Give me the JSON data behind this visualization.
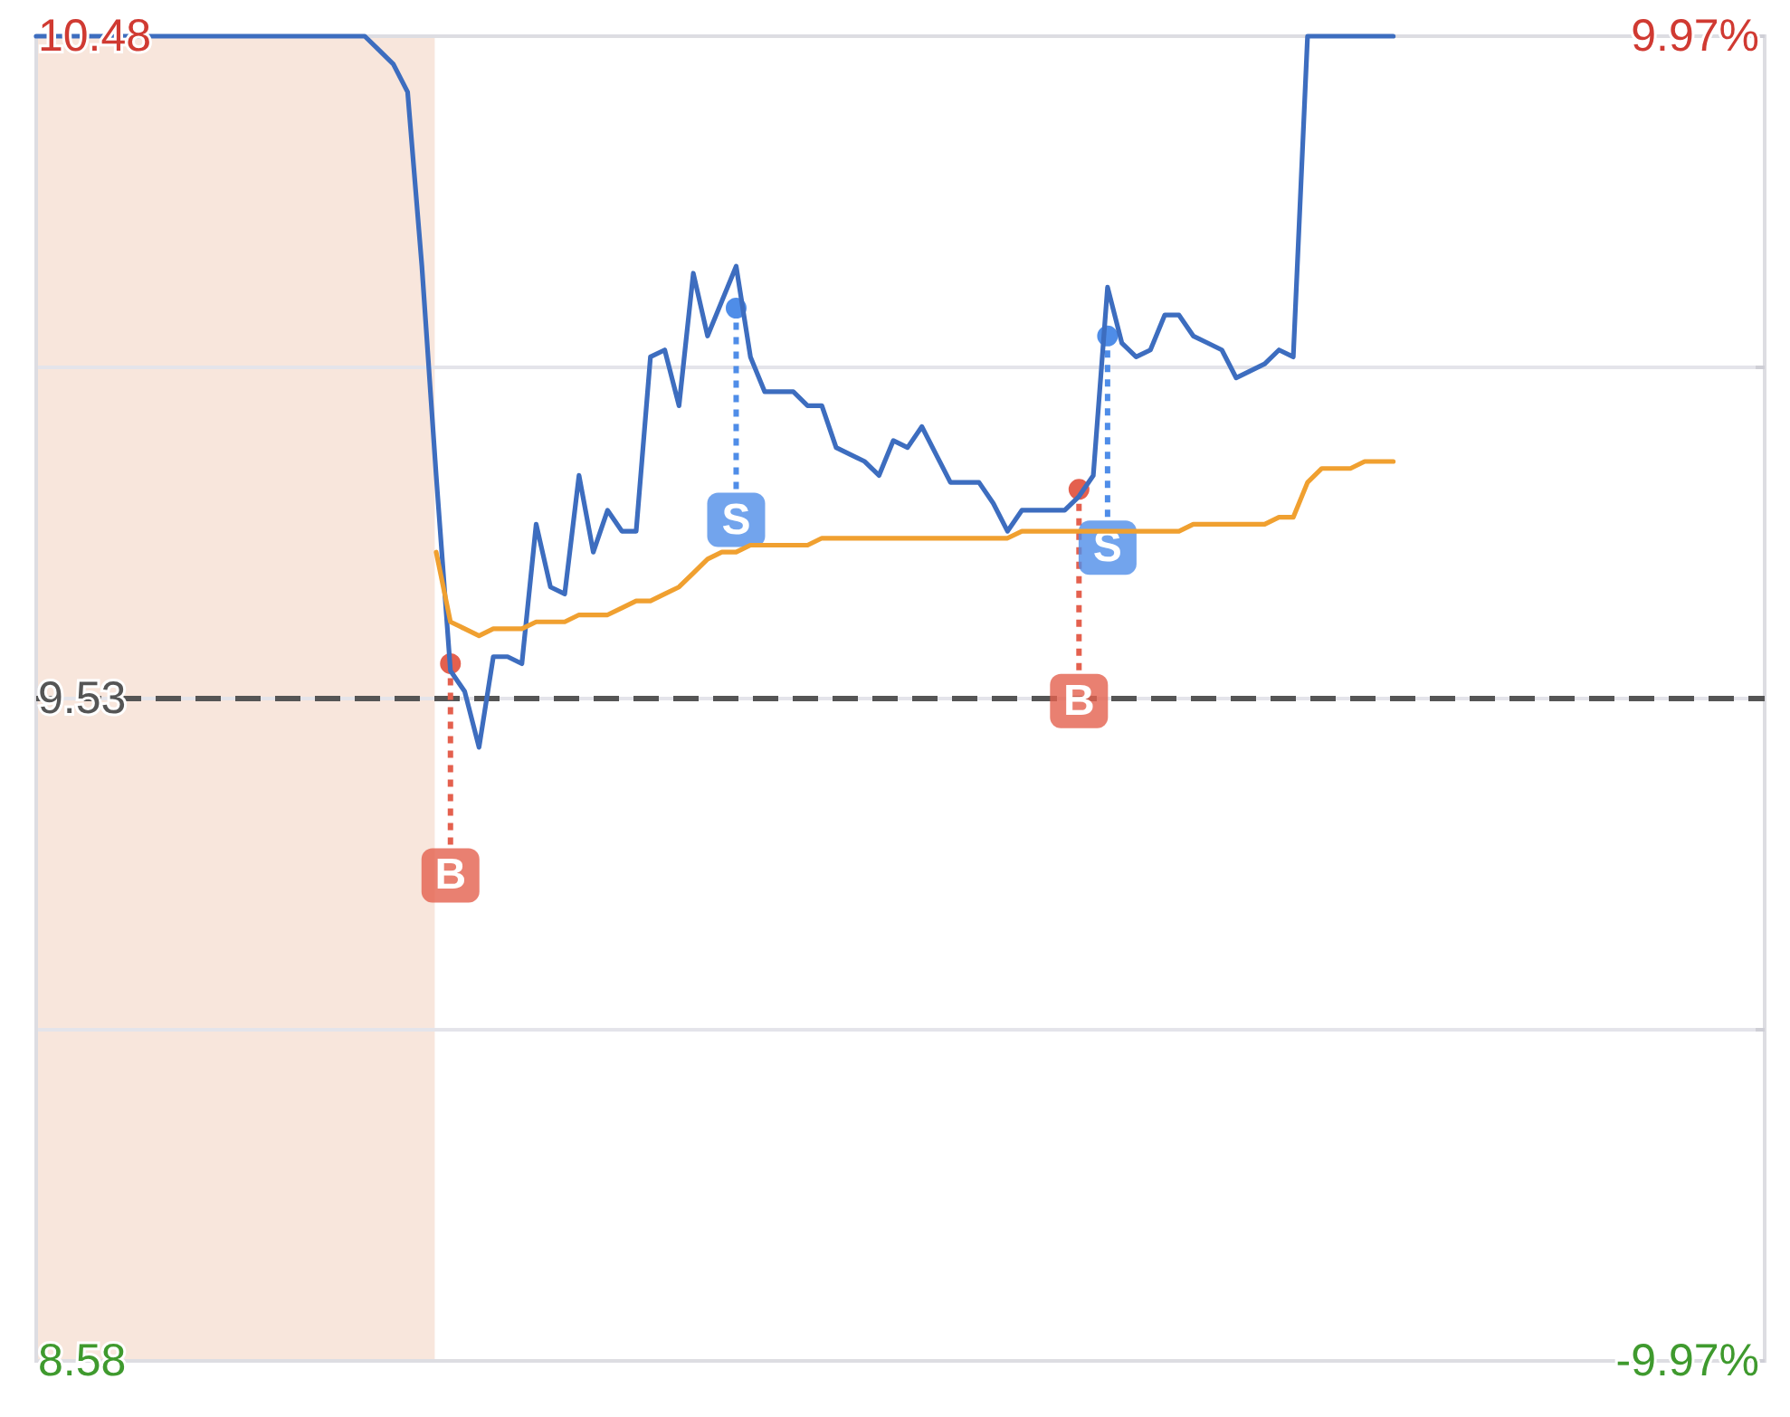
{
  "chart_data": {
    "type": "line",
    "categories": [
      null,
      null,
      null,
      null,
      null,
      null,
      null,
      null,
      null,
      null,
      null,
      null,
      null,
      null,
      null,
      null,
      null,
      null,
      null,
      null,
      null,
      null,
      null,
      null,
      null,
      null,
      null,
      null,
      null,
      null,
      null,
      null,
      null,
      null,
      null,
      null,
      null,
      null,
      null,
      null,
      null,
      null,
      null,
      null,
      null,
      null,
      null,
      null,
      null,
      null,
      null,
      null,
      null,
      null,
      null,
      null,
      null,
      null,
      null,
      null,
      null,
      null,
      null,
      null,
      null,
      null,
      null,
      null,
      null,
      null,
      null,
      null,
      null,
      null,
      null,
      null,
      null,
      null,
      null,
      null,
      null,
      null,
      null,
      null,
      null,
      null,
      null,
      null,
      null,
      null,
      null,
      null,
      null,
      null,
      null,
      null,
      null,
      null,
      null,
      null,
      null,
      null,
      null,
      null,
      null,
      null,
      null,
      null,
      null,
      null,
      null,
      null,
      null,
      null,
      null,
      null,
      null,
      null,
      null,
      null,
      null,
      null
    ],
    "ylim": [
      8.58,
      10.48
    ],
    "yticks": [
      10.48,
      {
        "value": 10.005,
        "label": null
      },
      9.53,
      {
        "value": 9.055,
        "label": null
      },
      8.58
    ],
    "y2lim": [
      -9.97,
      9.97
    ],
    "y2ticks": [
      {
        "value": 9.97,
        "label": "9.97%"
      },
      {
        "value": -9.97,
        "label": "-9.97%"
      }
    ],
    "tick_labels": "y",
    "grid": "y",
    "legend": false,
    "ref_lines": [
      {
        "axis": "y",
        "value": 9.53,
        "color": "#555555",
        "line_style": "dashed"
      }
    ],
    "series": [
      {
        "color": "#3d6dbf",
        "values": [
          10.48,
          10.48,
          10.48,
          10.48,
          10.48,
          10.48,
          10.48,
          10.48,
          10.48,
          10.48,
          10.48,
          10.48,
          10.48,
          10.48,
          10.48,
          10.48,
          10.48,
          10.48,
          10.48,
          10.48,
          10.48,
          10.48,
          10.48,
          10.48,
          10.46,
          10.44,
          10.4,
          10.15,
          9.85,
          9.57,
          9.54,
          9.46,
          9.59,
          9.59,
          9.58,
          9.78,
          9.69,
          9.68,
          9.85,
          9.74,
          9.8,
          9.77,
          9.77,
          10.02,
          10.03,
          9.95,
          10.14,
          10.05,
          10.1,
          10.15,
          10.02,
          9.97,
          9.97,
          9.97,
          9.95,
          9.95,
          9.89,
          9.88,
          9.87,
          9.85,
          9.9,
          9.89,
          9.92,
          9.88,
          9.84,
          9.84,
          9.84,
          9.81,
          9.77,
          9.8,
          9.8,
          9.8,
          9.8,
          9.82,
          9.85,
          10.12,
          10.04,
          10.02,
          10.03,
          10.08,
          10.08,
          10.05,
          10.04,
          10.03,
          9.99,
          10.0,
          10.01,
          10.03,
          10.02,
          10.48,
          10.48,
          10.48,
          10.48,
          10.48,
          10.48,
          10.48,
          null,
          null,
          null,
          null,
          null,
          null,
          null,
          null,
          null,
          null,
          null,
          null,
          null,
          null,
          null,
          null,
          null,
          null,
          null,
          null,
          null,
          null,
          null,
          null,
          null,
          null
        ]
      },
      {
        "color": "#f0a030",
        "values": [
          null,
          null,
          null,
          null,
          null,
          null,
          null,
          null,
          null,
          null,
          null,
          null,
          null,
          null,
          null,
          null,
          null,
          null,
          null,
          null,
          null,
          null,
          null,
          null,
          null,
          null,
          null,
          null,
          9.74,
          9.64,
          9.63,
          9.62,
          9.63,
          9.63,
          9.63,
          9.64,
          9.64,
          9.64,
          9.65,
          9.65,
          9.65,
          9.66,
          9.67,
          9.67,
          9.68,
          9.69,
          9.71,
          9.73,
          9.74,
          9.74,
          9.75,
          9.75,
          9.75,
          9.75,
          9.75,
          9.76,
          9.76,
          9.76,
          9.76,
          9.76,
          9.76,
          9.76,
          9.76,
          9.76,
          9.76,
          9.76,
          9.76,
          9.76,
          9.76,
          9.77,
          9.77,
          9.77,
          9.77,
          9.77,
          9.77,
          9.77,
          9.77,
          9.77,
          9.77,
          9.77,
          9.77,
          9.78,
          9.78,
          9.78,
          9.78,
          9.78,
          9.78,
          9.79,
          9.79,
          9.84,
          9.86,
          9.86,
          9.86,
          9.87,
          9.87,
          9.87,
          null,
          null,
          null,
          null,
          null,
          null,
          null,
          null,
          null,
          null,
          null,
          null,
          null,
          null,
          null,
          null,
          null,
          null,
          null,
          null,
          null,
          null,
          null,
          null,
          null,
          null
        ]
      },
      {
        "type": "scatter",
        "name": "B",
        "color": "#e4604e",
        "values": [
          null,
          null,
          null,
          null,
          null,
          null,
          null,
          null,
          null,
          null,
          null,
          null,
          null,
          null,
          null,
          null,
          null,
          null,
          null,
          null,
          null,
          null,
          null,
          null,
          null,
          null,
          null,
          null,
          null,
          9.58,
          null,
          null,
          null,
          null,
          null,
          null,
          null,
          null,
          null,
          null,
          null,
          null,
          null,
          null,
          null,
          null,
          null,
          null,
          null,
          null,
          null,
          null,
          null,
          null,
          null,
          null,
          null,
          null,
          null,
          null,
          null,
          null,
          null,
          null,
          null,
          null,
          null,
          null,
          null,
          null,
          null,
          null,
          null,
          9.83,
          null,
          null,
          null,
          null,
          null,
          null,
          null,
          null,
          null,
          null,
          null,
          null,
          null,
          null,
          null,
          null,
          null,
          null,
          null,
          null,
          null,
          null,
          null,
          null,
          null,
          null,
          null,
          null,
          null,
          null,
          null,
          null,
          null,
          null,
          null,
          null,
          null,
          null,
          null,
          null,
          null,
          null,
          null,
          null,
          null,
          null,
          null,
          null
        ]
      },
      {
        "type": "scatter",
        "name": "S",
        "color": "#4f8de8",
        "values": [
          null,
          null,
          null,
          null,
          null,
          null,
          null,
          null,
          null,
          null,
          null,
          null,
          null,
          null,
          null,
          null,
          null,
          null,
          null,
          null,
          null,
          null,
          null,
          null,
          null,
          null,
          null,
          null,
          null,
          null,
          null,
          null,
          null,
          null,
          null,
          null,
          null,
          null,
          null,
          null,
          null,
          null,
          null,
          null,
          null,
          null,
          null,
          null,
          null,
          10.09,
          null,
          null,
          null,
          null,
          null,
          null,
          null,
          null,
          null,
          null,
          null,
          null,
          null,
          null,
          null,
          null,
          null,
          null,
          null,
          null,
          null,
          null,
          null,
          null,
          null,
          10.05,
          null,
          null,
          null,
          null,
          null,
          null,
          null,
          null,
          null,
          null,
          null,
          null,
          null,
          null,
          null,
          null,
          null,
          null,
          null,
          null,
          null,
          null,
          null,
          null,
          null,
          null,
          null,
          null,
          null,
          null,
          null,
          null,
          null,
          null,
          null,
          null,
          null,
          null,
          null,
          null,
          null,
          null,
          null,
          null,
          null,
          null
        ]
      }
    ]
  }
}
